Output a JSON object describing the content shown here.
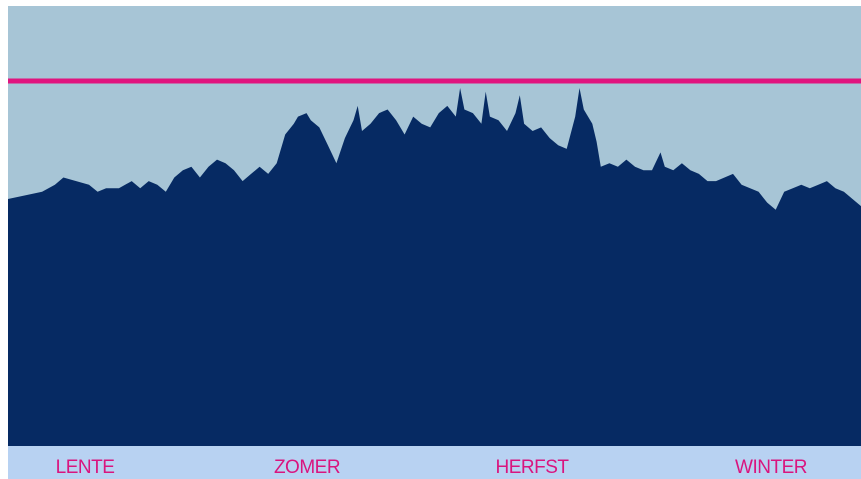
{
  "colors": {
    "page_background": "#ffffff",
    "plot_background": "#a7c5d6",
    "area_fill": "#062a63",
    "threshold_line": "#e0147f",
    "label_band": "#b8d2f2",
    "label_text": "#d9157f"
  },
  "chart_data": {
    "type": "area",
    "title": "",
    "xlabel": "",
    "ylabel": "",
    "categories": [
      "LENTE",
      "ZOMER",
      "HERFST",
      "WINTER"
    ],
    "xlim": [
      0,
      100
    ],
    "ylim": [
      0,
      100
    ],
    "grid": false,
    "legend": "none",
    "threshold": 100,
    "series": [
      {
        "values": [
          [
            0,
            69
          ],
          [
            2,
            70
          ],
          [
            4,
            71
          ],
          [
            5.5,
            73
          ],
          [
            6.5,
            75
          ],
          [
            8,
            74
          ],
          [
            9.5,
            73
          ],
          [
            10.5,
            71
          ],
          [
            11.5,
            72
          ],
          [
            13,
            72
          ],
          [
            14.5,
            74
          ],
          [
            15.5,
            72
          ],
          [
            16.5,
            74
          ],
          [
            17.5,
            73
          ],
          [
            18.5,
            71
          ],
          [
            19.5,
            75
          ],
          [
            20.5,
            77
          ],
          [
            21.5,
            78
          ],
          [
            22.5,
            75
          ],
          [
            23.5,
            78
          ],
          [
            24.5,
            80
          ],
          [
            25.5,
            79
          ],
          [
            26.5,
            77
          ],
          [
            27.5,
            74
          ],
          [
            28.5,
            76
          ],
          [
            29.5,
            78
          ],
          [
            30.5,
            76
          ],
          [
            31.5,
            79
          ],
          [
            32.5,
            87
          ],
          [
            33.5,
            90
          ],
          [
            34,
            92
          ],
          [
            35,
            93
          ],
          [
            35.5,
            91
          ],
          [
            36.5,
            89
          ],
          [
            37.5,
            84
          ],
          [
            38.5,
            79
          ],
          [
            39.5,
            86
          ],
          [
            40.5,
            91
          ],
          [
            41,
            95
          ],
          [
            41.5,
            88
          ],
          [
            42.5,
            90
          ],
          [
            43.5,
            93
          ],
          [
            44.5,
            94
          ],
          [
            45.5,
            91
          ],
          [
            46.5,
            87
          ],
          [
            47.5,
            92
          ],
          [
            48.5,
            90
          ],
          [
            49.5,
            89
          ],
          [
            50.5,
            93
          ],
          [
            51.5,
            95
          ],
          [
            52.5,
            92
          ],
          [
            53,
            100
          ],
          [
            53.5,
            94
          ],
          [
            54.5,
            93
          ],
          [
            55.5,
            90
          ],
          [
            56,
            99
          ],
          [
            56.5,
            92
          ],
          [
            57.5,
            91
          ],
          [
            58.5,
            88
          ],
          [
            59.5,
            93
          ],
          [
            60,
            98
          ],
          [
            60.5,
            90
          ],
          [
            61.5,
            88
          ],
          [
            62.5,
            89
          ],
          [
            63.5,
            86
          ],
          [
            64.5,
            84
          ],
          [
            65.5,
            83
          ],
          [
            66.5,
            92
          ],
          [
            67,
            100
          ],
          [
            67.5,
            94
          ],
          [
            68.5,
            90
          ],
          [
            69,
            85
          ],
          [
            69.5,
            78
          ],
          [
            70.5,
            79
          ],
          [
            71.5,
            78
          ],
          [
            72.5,
            80
          ],
          [
            73.5,
            78
          ],
          [
            74.5,
            77
          ],
          [
            75.5,
            77
          ],
          [
            76.5,
            82
          ],
          [
            77,
            78
          ],
          [
            78,
            77
          ],
          [
            79,
            79
          ],
          [
            80,
            77
          ],
          [
            81,
            76
          ],
          [
            82,
            74
          ],
          [
            83,
            74
          ],
          [
            84,
            75
          ],
          [
            85,
            76
          ],
          [
            86,
            73
          ],
          [
            87,
            72
          ],
          [
            88,
            71
          ],
          [
            89,
            68
          ],
          [
            90,
            66
          ],
          [
            91,
            71
          ],
          [
            92,
            72
          ],
          [
            93,
            73
          ],
          [
            94,
            72
          ],
          [
            95,
            73
          ],
          [
            96,
            74
          ],
          [
            97,
            72
          ],
          [
            98,
            71
          ],
          [
            99,
            69
          ],
          [
            100,
            67
          ]
        ]
      }
    ]
  }
}
